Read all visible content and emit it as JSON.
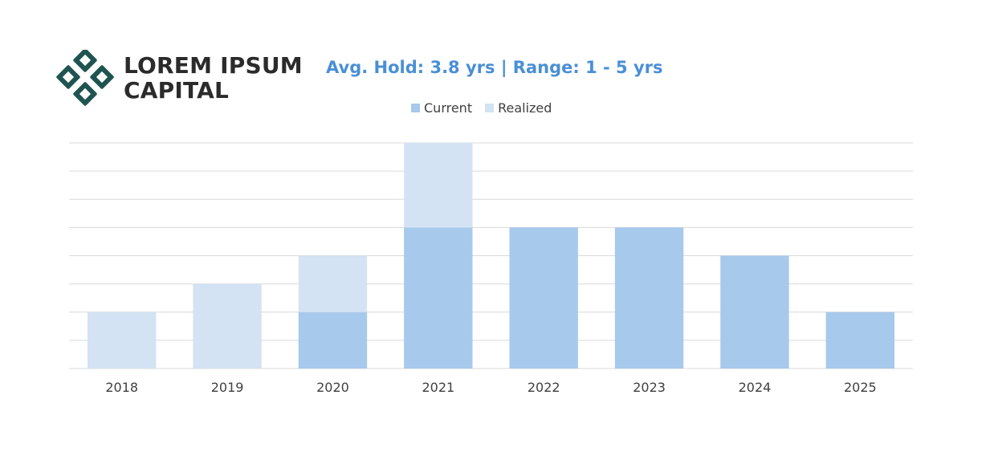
{
  "brand": {
    "line1": "LOREM IPSUM",
    "line2": "CAPITAL",
    "logo_color": "#1f5450"
  },
  "header": {
    "subtitle": "Avg. Hold: 3.8 yrs | Range: 1 - 5 yrs"
  },
  "colors": {
    "current": "#a7c9ec",
    "realized": "#d3e3f4",
    "gridline": "#d9d9d9",
    "tick_text": "#404040"
  },
  "chart_data": {
    "type": "bar",
    "stacked": true,
    "categories": [
      "2018",
      "2019",
      "2020",
      "2021",
      "2022",
      "2023",
      "2024",
      "2025"
    ],
    "series": [
      {
        "name": "Current",
        "values": [
          0,
          0,
          2,
          5,
          5,
          5,
          4,
          2
        ]
      },
      {
        "name": "Realized",
        "values": [
          2,
          3,
          2,
          3,
          0,
          0,
          0,
          0
        ]
      }
    ],
    "ylim": [
      0,
      8
    ],
    "grid": true,
    "legend": "top-center"
  }
}
